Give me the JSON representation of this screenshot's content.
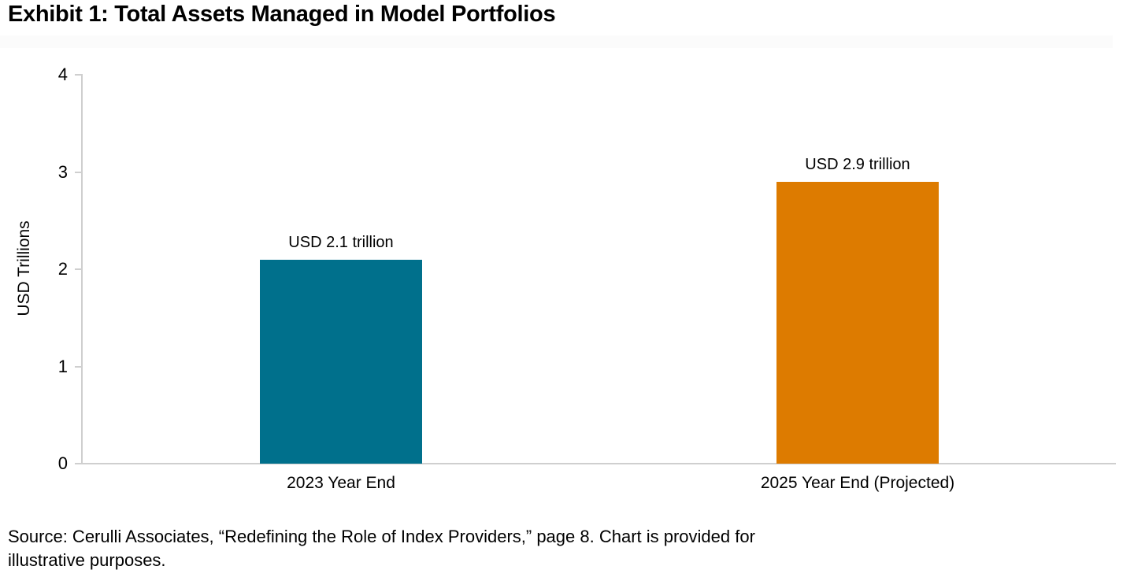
{
  "page": {
    "background": "#FFFFFF"
  },
  "title": "Exhibit 1: Total Assets Managed in Model Portfolios",
  "chart_data": {
    "type": "bar",
    "title": "Exhibit 1: Total Assets Managed in Model Portfolios",
    "categories": [
      "2023 Year End",
      "2025 Year End (Projected)"
    ],
    "values": [
      2.1,
      2.9
    ],
    "bar_labels": [
      "USD 2.1 trillion",
      "USD 2.9 trillion"
    ],
    "bar_colors": [
      "#00708C",
      "#DD7B00"
    ],
    "xlabel": "",
    "ylabel": "USD Trillions",
    "ylim": [
      0,
      4
    ],
    "yticks": [
      0,
      1,
      2,
      3,
      4
    ],
    "grid": false,
    "legend_position": "none",
    "axis_line_color": "#CFCFCF",
    "text_color": "#000000"
  },
  "source": {
    "lines": [
      "Source: Cerulli Associates, “Redefining the Role of Index Providers,” page 8. Chart is provided for",
      "illustrative purposes."
    ]
  }
}
